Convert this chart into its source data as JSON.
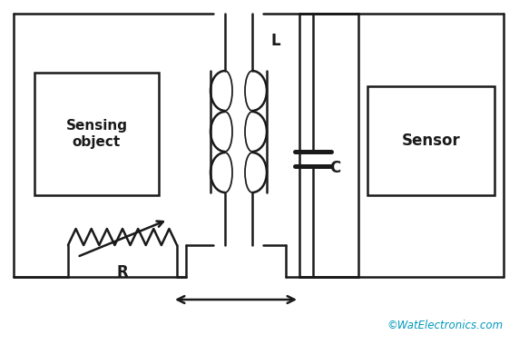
{
  "bg_color": "#ffffff",
  "line_color": "#1a1a1a",
  "text_color": "#1a1a1a",
  "cyan_color": "#0099bb",
  "sensing_label": "Sensing\nobject",
  "sensor_label": "Sensor",
  "L_label": "L",
  "C_label": "C",
  "R_label": "R",
  "watermark": "©WatElectronics.com",
  "figsize": [
    5.72,
    3.8
  ],
  "dpi": 100
}
